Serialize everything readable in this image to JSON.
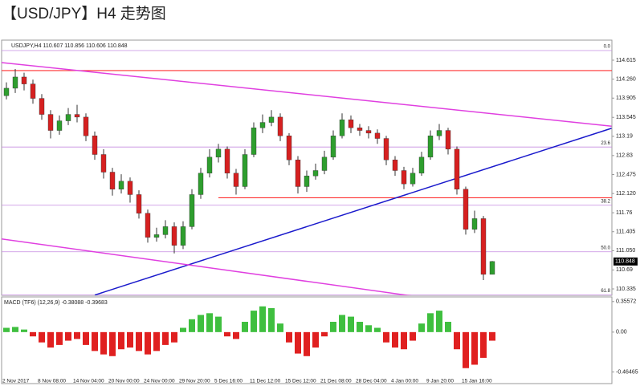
{
  "title": "【USD/JPY】H4 走势图",
  "chart_data": [
    {
      "type": "candlestick",
      "header": "USDJPY,H4 110.607 110.856 110.606 110.848",
      "categories": [
        "2 Nov 2017",
        null,
        null,
        null,
        "8 Nov 08:00",
        null,
        null,
        null,
        "14 Nov 04:00",
        null,
        null,
        null,
        "20 Nov 00:00",
        null,
        null,
        null,
        "24 Nov 00:00",
        null,
        null,
        null,
        "29 Nov 20:00",
        null,
        null,
        null,
        "5 Dec 16:00",
        null,
        null,
        null,
        "11 Dec 12:00",
        null,
        null,
        null,
        "15 Dec 12:00",
        null,
        null,
        null,
        "21 Dec 08:00",
        null,
        null,
        null,
        "28 Dec 04:00",
        null,
        null,
        null,
        "4 Jan 00:00",
        null,
        null,
        null,
        "9 Jan 20:00",
        null,
        null,
        null,
        "15 Jan 16:00",
        null,
        null,
        null
      ],
      "open": [
        113.95,
        114.09,
        114.3,
        114.17,
        113.9,
        113.6,
        113.3,
        113.48,
        113.6,
        113.55,
        113.2,
        112.85,
        112.52,
        112.2,
        112.35,
        112.1,
        111.75,
        111.3,
        111.35,
        111.5,
        111.15,
        111.5,
        112.1,
        112.5,
        112.8,
        112.95,
        112.5,
        112.25,
        112.85,
        113.35,
        113.45,
        113.55,
        113.2,
        112.75,
        112.25,
        112.45,
        112.55,
        112.8,
        113.2,
        113.5,
        113.35,
        113.3,
        113.25,
        113.15,
        112.75,
        112.55,
        112.3,
        112.5,
        112.8,
        113.2,
        113.3,
        112.95,
        112.2,
        111.45,
        111.65,
        110.607
      ],
      "high": [
        114.2,
        114.45,
        114.38,
        114.25,
        113.98,
        113.68,
        113.58,
        113.72,
        113.78,
        113.62,
        113.28,
        112.95,
        112.6,
        112.48,
        112.42,
        112.18,
        111.82,
        111.48,
        111.62,
        111.58,
        111.6,
        112.2,
        112.6,
        112.95,
        113.05,
        113.0,
        112.58,
        112.95,
        113.45,
        113.6,
        113.68,
        113.62,
        113.25,
        112.82,
        112.55,
        112.68,
        112.92,
        113.3,
        113.62,
        113.58,
        113.42,
        113.38,
        113.32,
        113.2,
        112.82,
        112.62,
        112.6,
        112.9,
        113.3,
        113.42,
        113.35,
        113.0,
        112.25,
        111.8,
        111.7,
        110.856
      ],
      "low": [
        113.88,
        114.0,
        114.05,
        113.8,
        113.5,
        113.15,
        113.22,
        113.4,
        113.45,
        113.1,
        112.75,
        112.4,
        112.08,
        112.12,
        111.95,
        111.65,
        111.2,
        111.22,
        111.28,
        111.0,
        111.08,
        111.45,
        112.02,
        112.42,
        112.7,
        112.4,
        112.1,
        112.2,
        112.8,
        113.25,
        113.38,
        113.1,
        112.65,
        112.12,
        112.15,
        112.38,
        112.48,
        112.75,
        113.15,
        113.25,
        113.2,
        113.15,
        113.05,
        112.65,
        112.45,
        112.2,
        112.25,
        112.45,
        112.75,
        113.12,
        112.85,
        112.1,
        111.35,
        111.38,
        110.5,
        110.606
      ],
      "close": [
        114.09,
        114.3,
        114.17,
        113.9,
        113.6,
        113.3,
        113.48,
        113.6,
        113.55,
        113.2,
        112.85,
        112.52,
        112.2,
        112.35,
        112.1,
        111.75,
        111.3,
        111.35,
        111.5,
        111.15,
        111.5,
        112.1,
        112.5,
        112.8,
        112.95,
        112.5,
        112.25,
        112.85,
        113.35,
        113.45,
        113.55,
        113.2,
        112.75,
        112.25,
        112.45,
        112.55,
        112.8,
        113.2,
        113.5,
        113.35,
        113.3,
        113.25,
        113.15,
        112.75,
        112.55,
        112.3,
        112.5,
        112.8,
        113.2,
        113.3,
        112.95,
        112.2,
        111.45,
        111.65,
        110.607,
        110.848
      ],
      "up_color": "#2e9e2e",
      "down_color": "#d62020",
      "ylim": [
        110.215,
        114.99
      ],
      "yticks": [
        114.615,
        {
          "value": 114.26,
          "label": "114.260"
        },
        113.905,
        113.545,
        113.19,
        112.83,
        112.475,
        {
          "value": 112.12,
          "label": "112.120"
        },
        111.76,
        111.405,
        {
          "value": 111.05,
          "label": "111.050"
        },
        110.69,
        110.335
      ],
      "last_price": 110.848,
      "fib_color": "#c58be0",
      "fib_levels": [
        {
          "value": 114.795,
          "label": "0.0"
        },
        {
          "value": 112.99,
          "label": "23.6"
        },
        {
          "value": 111.9,
          "label": "38.2"
        },
        {
          "value": 111.03,
          "label": "50.0"
        },
        {
          "value": 110.22,
          "label": "61.8"
        }
      ],
      "level_color": "#ff3030",
      "levels": [
        114.42,
        112.04
      ],
      "trendlines": [
        {
          "color": "#e040e0",
          "from": [
            -0.55,
            114.57
          ],
          "to": [
            68.5,
            113.38
          ]
        },
        {
          "color": "#1a1acc",
          "from": [
            10,
            110.22
          ],
          "to": [
            68.5,
            113.34
          ]
        },
        {
          "color": "#e040e0",
          "from": [
            -0.55,
            111.27
          ],
          "to": [
            46.5,
            110.19
          ]
        }
      ]
    },
    {
      "type": "bar",
      "label": "MACD (TF6) (12,26,9) -0.38088 -0.39683",
      "values": [
        0.05,
        0.06,
        0.03,
        -0.05,
        -0.12,
        -0.18,
        -0.15,
        -0.1,
        -0.08,
        -0.15,
        -0.22,
        -0.26,
        -0.28,
        -0.2,
        -0.18,
        -0.22,
        -0.26,
        -0.22,
        -0.15,
        -0.12,
        0.05,
        0.15,
        0.2,
        0.22,
        0.18,
        -0.05,
        -0.08,
        0.12,
        0.25,
        0.3,
        0.28,
        0.1,
        -0.12,
        -0.25,
        -0.28,
        -0.18,
        -0.05,
        0.12,
        0.2,
        0.18,
        0.12,
        0.08,
        0.05,
        -0.12,
        -0.18,
        -0.2,
        -0.1,
        0.1,
        0.22,
        0.25,
        0.12,
        -0.2,
        -0.42,
        -0.38,
        -0.3,
        -0.1
      ],
      "pos_color": "#3fbf3f",
      "neg_color": "#e02020",
      "ylim": [
        -0.6,
        0.41
      ],
      "yticks": [
        0.35572,
        {
          "value": 0,
          "label": "0.00"
        },
        -0.46465
      ]
    }
  ]
}
